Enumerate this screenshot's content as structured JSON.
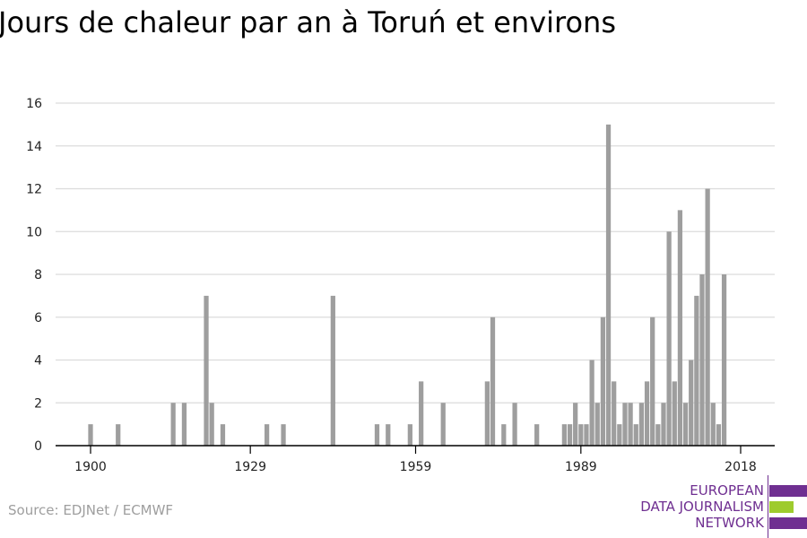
{
  "title": "Jours de chaleur par an à Toruń et environs",
  "source": "Source: EDJNet / ECMWF",
  "logo": {
    "lines": [
      "EUROPEAN",
      "DATA JOURNALISM",
      "NETWORK"
    ],
    "colors": {
      "purple": "#6f2f91",
      "green": "#9ecb2d"
    }
  },
  "colors": {
    "bar": "#9e9e9e",
    "grid": "#dcdcdc",
    "axis": "#000000"
  },
  "chart_data": {
    "type": "bar",
    "title": "Jours de chaleur par an à Toruń et environs",
    "xlabel": "",
    "ylabel": "",
    "xlim": [
      1900,
      2018
    ],
    "ylim": [
      0,
      16
    ],
    "x_ticks": [
      1900,
      1929,
      1959,
      1989,
      2018
    ],
    "y_ticks": [
      0,
      2,
      4,
      6,
      8,
      10,
      12,
      14,
      16
    ],
    "grid": true,
    "legend": "none",
    "x": [
      1900,
      1905,
      1915,
      1917,
      1921,
      1922,
      1924,
      1932,
      1935,
      1944,
      1952,
      1954,
      1958,
      1960,
      1964,
      1972,
      1973,
      1975,
      1977,
      1981,
      1986,
      1987,
      1988,
      1989,
      1990,
      1991,
      1992,
      1993,
      1994,
      1995,
      1996,
      1997,
      1998,
      1999,
      2000,
      2001,
      2002,
      2003,
      2004,
      2005,
      2006,
      2007,
      2008,
      2009,
      2010,
      2011,
      2012,
      2013,
      2014,
      2015,
      2016,
      2017
    ],
    "values": [
      1,
      1,
      2,
      2,
      7,
      2,
      1,
      1,
      1,
      7,
      1,
      1,
      1,
      3,
      2,
      3,
      6,
      1,
      2,
      1,
      1,
      1,
      2,
      1,
      1,
      4,
      2,
      6,
      15,
      3,
      1,
      2,
      2,
      1,
      2,
      3,
      6,
      1,
      2,
      10,
      3,
      11,
      2,
      4,
      7,
      8,
      12,
      2,
      1,
      8,
      0,
      0
    ]
  }
}
